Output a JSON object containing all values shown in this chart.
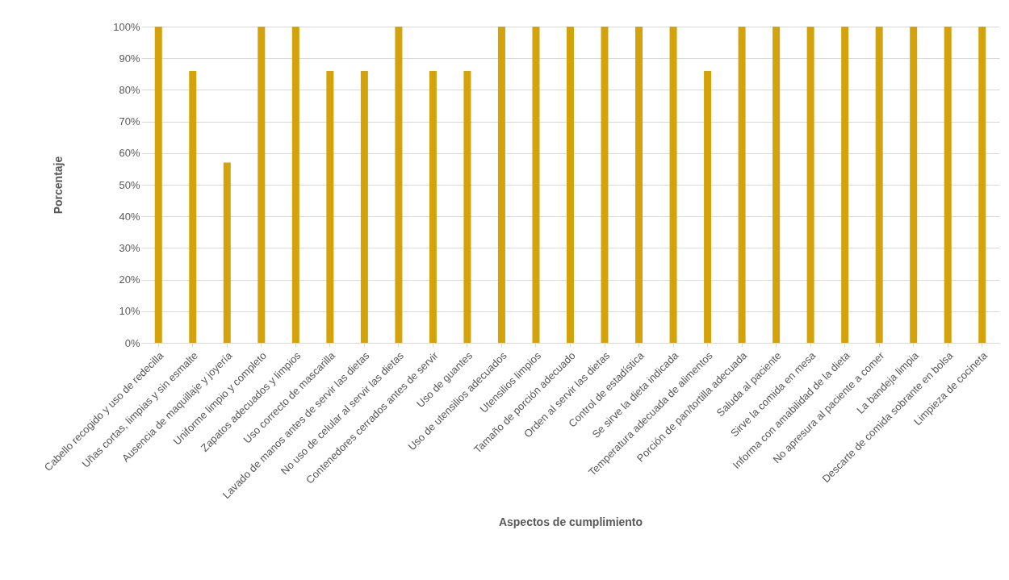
{
  "chart_data": {
    "type": "bar",
    "xlabel": "Aspectos de cumplimiento",
    "ylabel": "Porcentaje",
    "categories": [
      "Cabello recogido y uso de redecilla",
      "Uñas cortas, limpias y sin esmalte",
      "Ausencia de maquillaje y joyería",
      "Uniforme limpio y completo",
      "Zapatos adecuados y limpios",
      "Uso correcto de mascarilla",
      "Lavado de manos antes de servir las dietas",
      "No uso de celular al servir las dietas",
      "Contenedores cerrados antes de servir",
      "Uso de guantes",
      "Uso de utensilios adecuados",
      "Utensilios limpios",
      "Tamaño de porción adecuado",
      "Orden al servir las dietas",
      "Control de estadística",
      "Se sirve la dieta indicada",
      "Temperatura adecuada de alimentos",
      "Porción de pan/tortilla adecuada",
      "Saluda al paciente",
      "Sirve la comida en mesa",
      "Informa con amabilidad de la dieta",
      "No apresura al paciente a comer",
      "La bandeja limpia",
      "Descarte de comida sobrante en bolsa",
      "Limpieza de cocineta"
    ],
    "values": [
      100,
      86,
      57,
      100,
      100,
      86,
      86,
      100,
      86,
      86,
      100,
      100,
      100,
      100,
      100,
      100,
      86,
      100,
      100,
      100,
      100,
      100,
      100,
      100,
      100
    ],
    "color": "#d4a20a",
    "ylim": [
      0,
      100
    ],
    "yticks": [
      {
        "value": 0,
        "label": "0%"
      },
      {
        "value": 10,
        "label": "10%"
      },
      {
        "value": 20,
        "label": "20%"
      },
      {
        "value": 30,
        "label": "30%"
      },
      {
        "value": 40,
        "label": "40%"
      },
      {
        "value": 50,
        "label": "50%"
      },
      {
        "value": 60,
        "label": "60%"
      },
      {
        "value": 70,
        "label": "70%"
      },
      {
        "value": 80,
        "label": "80%"
      },
      {
        "value": 90,
        "label": "90%"
      },
      {
        "value": 100,
        "label": "100%"
      }
    ],
    "grid": "y"
  }
}
